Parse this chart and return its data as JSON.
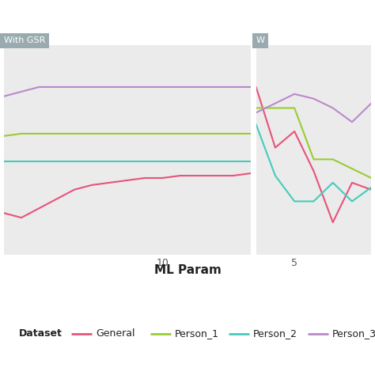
{
  "title_left": "With GSR",
  "title_right": "W",
  "xlabel": "ML Param",
  "colors": {
    "General": "#E8537A",
    "Person_1": "#99CC33",
    "Person_2": "#44CCBB",
    "Person_3": "#BB88CC"
  },
  "panel_color": "#9AABB0",
  "bg_color": "#FFFFFF",
  "plot_bg": "#EBEBEB",
  "grid_color": "#FFFFFF",
  "left": {
    "x": [
      1,
      2,
      3,
      4,
      5,
      6,
      7,
      8,
      9,
      10,
      11,
      12,
      13,
      14,
      15
    ],
    "General": [
      0.28,
      0.26,
      0.3,
      0.34,
      0.38,
      0.4,
      0.41,
      0.42,
      0.43,
      0.43,
      0.44,
      0.44,
      0.44,
      0.44,
      0.45
    ],
    "Person_1": [
      0.61,
      0.62,
      0.62,
      0.62,
      0.62,
      0.62,
      0.62,
      0.62,
      0.62,
      0.62,
      0.62,
      0.62,
      0.62,
      0.62,
      0.62
    ],
    "Person_2": [
      0.5,
      0.5,
      0.5,
      0.5,
      0.5,
      0.5,
      0.5,
      0.5,
      0.5,
      0.5,
      0.5,
      0.5,
      0.5,
      0.5,
      0.5
    ],
    "Person_3": [
      0.78,
      0.8,
      0.82,
      0.82,
      0.82,
      0.82,
      0.82,
      0.82,
      0.82,
      0.82,
      0.82,
      0.82,
      0.82,
      0.82,
      0.82
    ]
  },
  "right": {
    "x": [
      7,
      6,
      5,
      4,
      3,
      2,
      1
    ],
    "General": [
      0.82,
      0.56,
      0.63,
      0.46,
      0.24,
      0.41,
      0.38
    ],
    "Person_1": [
      0.73,
      0.73,
      0.73,
      0.51,
      0.51,
      0.47,
      0.43
    ],
    "Person_2": [
      0.66,
      0.44,
      0.33,
      0.33,
      0.41,
      0.33,
      0.39
    ],
    "Person_3": [
      0.71,
      0.75,
      0.79,
      0.77,
      0.73,
      0.67,
      0.75
    ]
  },
  "legend_labels": [
    "General",
    "Person_1",
    "Person_2",
    "Person_3"
  ],
  "left_xlim": [
    1,
    15
  ],
  "right_xlim": [
    7,
    1
  ],
  "left_xticks": [
    10
  ],
  "right_xticks": [
    5
  ],
  "ylim": [
    0.1,
    1.0
  ],
  "linewidth": 1.5
}
